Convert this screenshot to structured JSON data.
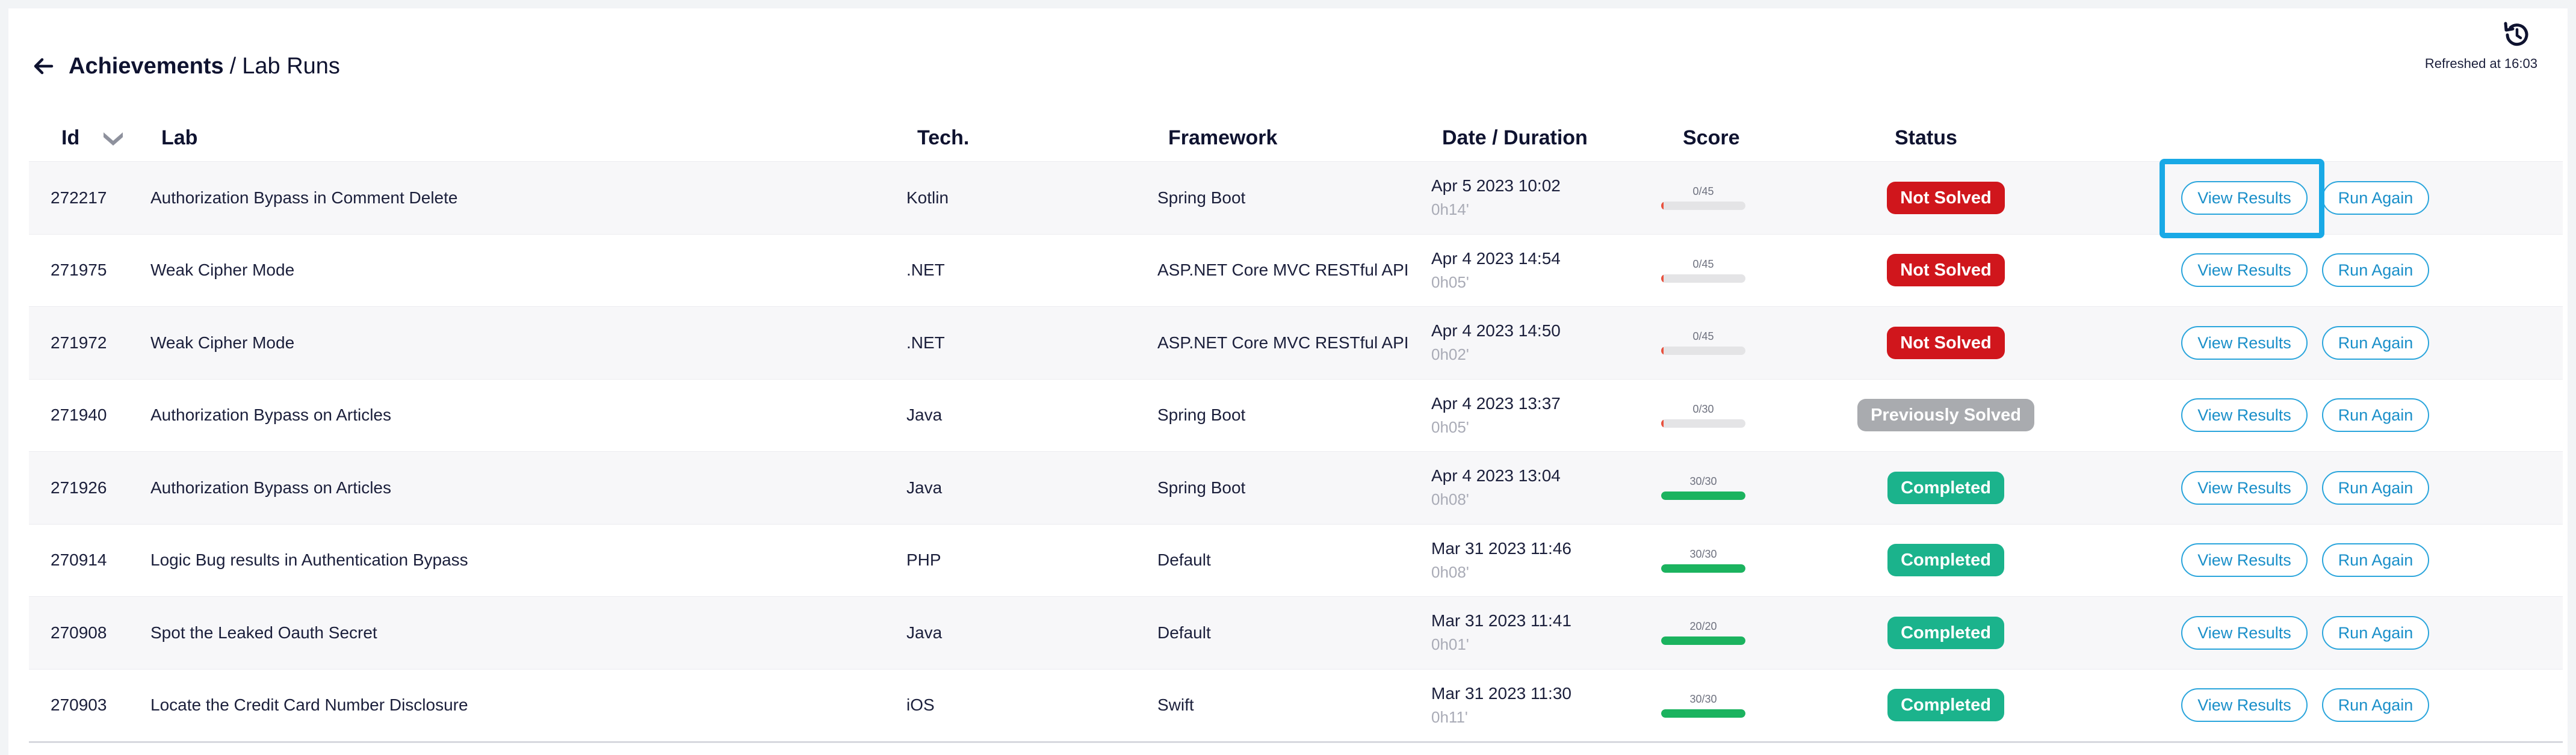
{
  "header": {
    "breadcrumb_parent": "Achievements",
    "separator": "/",
    "breadcrumb_current": "Lab Runs",
    "refreshed_text": "Refreshed at 16:03"
  },
  "icons": {
    "back": "arrow-left-icon",
    "refresh": "history-refresh-icon",
    "sort": "chevron-down-icon"
  },
  "colors": {
    "not_solved": "#d0161c",
    "previously_solved": "#a9abaf",
    "completed": "#1bb38c",
    "score_fail": "#e8513e",
    "score_pass": "#1bb35f",
    "accent": "#2aa5dc"
  },
  "table": {
    "columns": {
      "id": "Id",
      "lab": "Lab",
      "tech": "Tech.",
      "framework": "Framework",
      "date": "Date / Duration",
      "score": "Score",
      "status": "Status"
    },
    "rows": [
      {
        "id": "272217",
        "lab": "Authorization Bypass in Comment Delete",
        "tech": "Kotlin",
        "framework": "Spring Boot",
        "date": "Apr 5 2023 10:02",
        "duration": "0h14'",
        "score_text": "0/45",
        "score_fraction": 0,
        "status": "Not Solved",
        "status_kind": "not_solved",
        "view_label": "View Results",
        "run_label": "Run Again"
      },
      {
        "id": "271975",
        "lab": "Weak Cipher Mode",
        "tech": ".NET",
        "framework": "ASP.NET Core MVC RESTful API",
        "date": "Apr 4 2023 14:54",
        "duration": "0h05'",
        "score_text": "0/45",
        "score_fraction": 0,
        "status": "Not Solved",
        "status_kind": "not_solved",
        "view_label": "View Results",
        "run_label": "Run Again"
      },
      {
        "id": "271972",
        "lab": "Weak Cipher Mode",
        "tech": ".NET",
        "framework": "ASP.NET Core MVC RESTful API",
        "date": "Apr 4 2023 14:50",
        "duration": "0h02'",
        "score_text": "0/45",
        "score_fraction": 0,
        "status": "Not Solved",
        "status_kind": "not_solved",
        "view_label": "View Results",
        "run_label": "Run Again"
      },
      {
        "id": "271940",
        "lab": "Authorization Bypass on Articles",
        "tech": "Java",
        "framework": "Spring Boot",
        "date": "Apr 4 2023 13:37",
        "duration": "0h05'",
        "score_text": "0/30",
        "score_fraction": 0,
        "status": "Previously Solved",
        "status_kind": "previously_solved",
        "view_label": "View Results",
        "run_label": "Run Again"
      },
      {
        "id": "271926",
        "lab": "Authorization Bypass on Articles",
        "tech": "Java",
        "framework": "Spring Boot",
        "date": "Apr 4 2023 13:04",
        "duration": "0h08'",
        "score_text": "30/30",
        "score_fraction": 1,
        "status": "Completed",
        "status_kind": "completed",
        "view_label": "View Results",
        "run_label": "Run Again"
      },
      {
        "id": "270914",
        "lab": "Logic Bug results in Authentication Bypass",
        "tech": "PHP",
        "framework": "Default",
        "date": "Mar 31 2023 11:46",
        "duration": "0h08'",
        "score_text": "30/30",
        "score_fraction": 1,
        "status": "Completed",
        "status_kind": "completed",
        "view_label": "View Results",
        "run_label": "Run Again"
      },
      {
        "id": "270908",
        "lab": "Spot the Leaked Oauth Secret",
        "tech": "Java",
        "framework": "Default",
        "date": "Mar 31 2023 11:41",
        "duration": "0h01'",
        "score_text": "20/20",
        "score_fraction": 1,
        "status": "Completed",
        "status_kind": "completed",
        "view_label": "View Results",
        "run_label": "Run Again"
      },
      {
        "id": "270903",
        "lab": "Locate the Credit Card Number Disclosure",
        "tech": "iOS",
        "framework": "Swift",
        "date": "Mar 31 2023 11:30",
        "duration": "0h11'",
        "score_text": "30/30",
        "score_fraction": 1,
        "status": "Completed",
        "status_kind": "completed",
        "view_label": "View Results",
        "run_label": "Run Again"
      }
    ]
  }
}
